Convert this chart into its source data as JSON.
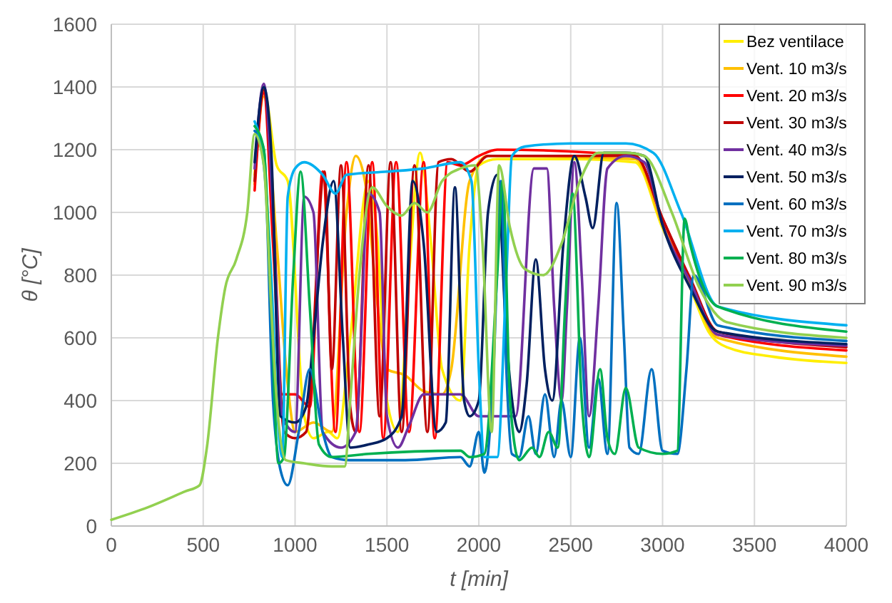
{
  "chart_data": {
    "type": "line",
    "xlabel": "t [min]",
    "ylabel": "θ [°C]",
    "xlim": [
      0,
      4000
    ],
    "ylim": [
      0,
      1600
    ],
    "xticks": [
      0,
      500,
      1000,
      1500,
      2000,
      2500,
      3000,
      3500,
      4000
    ],
    "yticks": [
      0,
      200,
      400,
      600,
      800,
      1000,
      1200,
      1400,
      1600
    ],
    "grid": true,
    "legend": "top right",
    "marker": "none",
    "line_style": "solid",
    "series": [
      {
        "name": "Bez ventilace",
        "color": "#ffee00",
        "x": [
          780,
          830,
          900,
          960,
          1050,
          1100,
          1180,
          1230,
          1300,
          1400,
          1450,
          1500,
          1560,
          1620,
          1680,
          1740,
          1800,
          1900,
          1950,
          2000,
          2100,
          2500,
          2850,
          3000,
          3150,
          3250,
          3350,
          3600,
          4000
        ],
        "values": [
          1120,
          1390,
          1150,
          1100,
          350,
          280,
          300,
          280,
          600,
          1100,
          900,
          400,
          300,
          800,
          1190,
          900,
          500,
          400,
          900,
          1150,
          1170,
          1170,
          1160,
          950,
          760,
          620,
          570,
          540,
          520
        ]
      },
      {
        "name": "Vent. 10 m3/s",
        "color": "#ffc000",
        "x": [
          780,
          830,
          900,
          960,
          1000,
          1100,
          1200,
          1280,
          1330,
          1380,
          1450,
          1500,
          1600,
          1700,
          1800,
          1850,
          1950,
          2050,
          2850,
          3000,
          3150,
          3300,
          4000
        ],
        "values": [
          1090,
          1370,
          900,
          450,
          300,
          330,
          300,
          1000,
          1180,
          1100,
          700,
          500,
          480,
          430,
          420,
          500,
          1100,
          1180,
          1170,
          960,
          770,
          600,
          540
        ]
      },
      {
        "name": "Vent. 20 m3/s",
        "color": "#ff0000",
        "x": [
          780,
          830,
          880,
          930,
          1000,
          1080,
          1150,
          1220,
          1280,
          1350,
          1420,
          1480,
          1550,
          1620,
          1700,
          1760,
          1830,
          1900,
          2000,
          2100,
          2850,
          3000,
          3150,
          3300,
          4000
        ],
        "values": [
          1070,
          1380,
          900,
          420,
          420,
          380,
          1130,
          300,
          1160,
          300,
          1160,
          280,
          1160,
          300,
          1160,
          280,
          1160,
          1150,
          1180,
          1200,
          1180,
          980,
          780,
          610,
          560
        ]
      },
      {
        "name": "Vent. 30 m3/s",
        "color": "#c00000",
        "x": [
          780,
          830,
          880,
          940,
          1000,
          1060,
          1160,
          1200,
          1250,
          1300,
          1330,
          1400,
          1460,
          1520,
          1580,
          1650,
          1720,
          1780,
          1850,
          1950,
          2050,
          2850,
          3000,
          3150,
          3300,
          4000
        ],
        "values": [
          1100,
          1390,
          1000,
          300,
          280,
          300,
          1130,
          500,
          1150,
          380,
          300,
          1150,
          350,
          1160,
          300,
          1150,
          300,
          1160,
          1170,
          1130,
          1180,
          1180,
          980,
          790,
          620,
          570
        ]
      },
      {
        "name": "Vent. 40 m3/s",
        "color": "#7030a0",
        "x": [
          780,
          830,
          880,
          930,
          1000,
          1050,
          1100,
          1150,
          1250,
          1330,
          1400,
          1460,
          1500,
          1560,
          1620,
          1700,
          1900,
          2000,
          2100,
          2200,
          2300,
          2370,
          2410,
          2450,
          2480,
          2520,
          2560,
          2600,
          2650,
          2700,
          2800,
          2900,
          3000,
          3150,
          3300,
          4000
        ],
        "values": [
          1140,
          1410,
          1000,
          350,
          300,
          1050,
          1000,
          300,
          250,
          300,
          1060,
          1000,
          350,
          250,
          320,
          420,
          420,
          350,
          350,
          350,
          1140,
          1140,
          700,
          400,
          700,
          1160,
          800,
          350,
          700,
          1140,
          1180,
          1160,
          960,
          780,
          610,
          575
        ]
      },
      {
        "name": "Vent. 50 m3/s",
        "color": "#002060",
        "x": [
          780,
          830,
          870,
          920,
          1000,
          1060,
          1100,
          1150,
          1210,
          1260,
          1300,
          1400,
          1500,
          1580,
          1640,
          1700,
          1770,
          1820,
          1870,
          1920,
          1950,
          2000,
          2050,
          2100,
          2150,
          2220,
          2260,
          2310,
          2360,
          2400,
          2460,
          2520,
          2580,
          2620,
          2680,
          2800,
          2900,
          3000,
          3150,
          3300,
          4000
        ],
        "values": [
          1160,
          1400,
          1200,
          350,
          330,
          380,
          600,
          900,
          1100,
          600,
          250,
          260,
          280,
          350,
          1100,
          900,
          300,
          330,
          1080,
          400,
          350,
          400,
          1000,
          1120,
          600,
          300,
          450,
          850,
          500,
          400,
          900,
          1180,
          1050,
          950,
          1190,
          1190,
          1180,
          960,
          760,
          620,
          580
        ]
      },
      {
        "name": "Vent. 60 m3/s",
        "color": "#0070c0",
        "x": [
          780,
          830,
          880,
          920,
          960,
          1020,
          1080,
          1150,
          1200,
          1300,
          1600,
          1900,
          1950,
          2000,
          2030,
          2080,
          2120,
          2150,
          2180,
          2220,
          2270,
          2310,
          2360,
          2410,
          2450,
          2500,
          2550,
          2600,
          2650,
          2700,
          2750,
          2790,
          2820,
          2870,
          2940,
          3000,
          3080,
          3130,
          3170,
          3300,
          4000
        ],
        "values": [
          1260,
          1200,
          400,
          180,
          130,
          300,
          500,
          300,
          220,
          210,
          210,
          220,
          190,
          300,
          170,
          500,
          1100,
          500,
          230,
          220,
          350,
          230,
          420,
          220,
          400,
          220,
          600,
          250,
          470,
          230,
          1030,
          600,
          250,
          230,
          500,
          240,
          230,
          500,
          800,
          640,
          590
        ]
      },
      {
        "name": "Vent. 70 m3/s",
        "color": "#00b0f0",
        "x": [
          780,
          830,
          870,
          900,
          930,
          960,
          1000,
          1050,
          1150,
          1220,
          1280,
          1500,
          1700,
          1900,
          1960,
          2000,
          2030,
          2100,
          2150,
          2180,
          2250,
          2500,
          2800,
          2950,
          3100,
          3300,
          4000
        ],
        "values": [
          1290,
          1150,
          800,
          400,
          220,
          1050,
          1140,
          1160,
          1120,
          1060,
          1120,
          1130,
          1140,
          1160,
          1100,
          500,
          220,
          220,
          800,
          1180,
          1210,
          1220,
          1220,
          1190,
          1000,
          700,
          640
        ]
      },
      {
        "name": "Vent. 80 m3/s",
        "color": "#00b050",
        "x": [
          780,
          830,
          870,
          910,
          940,
          990,
          1030,
          1080,
          1130,
          1200,
          1400,
          1900,
          1950,
          2030,
          2100,
          2130,
          2170,
          2220,
          2290,
          2330,
          2380,
          2430,
          2470,
          2510,
          2560,
          2600,
          2660,
          2700,
          2740,
          2800,
          2870,
          3000,
          3080,
          3120,
          3150,
          3300,
          4000
        ],
        "values": [
          1275,
          1200,
          700,
          200,
          220,
          800,
          1130,
          700,
          260,
          220,
          230,
          240,
          220,
          230,
          800,
          1100,
          400,
          210,
          250,
          220,
          300,
          250,
          700,
          1060,
          400,
          220,
          500,
          280,
          230,
          440,
          250,
          230,
          240,
          980,
          900,
          700,
          620
        ]
      },
      {
        "name": "Vent. 90 m3/s",
        "color": "#92d050",
        "x": [
          0,
          200,
          400,
          480,
          520,
          580,
          620,
          680,
          740,
          780,
          830,
          870,
          900,
          950,
          1050,
          1200,
          1270,
          1300,
          1350,
          1420,
          1500,
          1580,
          1650,
          1720,
          1800,
          1900,
          1980,
          2020,
          2070,
          2110,
          2170,
          2250,
          2350,
          2450,
          2550,
          2650,
          2800,
          2900,
          3050,
          3200,
          3350,
          4000
        ],
        "values": [
          20,
          60,
          110,
          130,
          250,
          600,
          760,
          850,
          1000,
          1250,
          1150,
          700,
          400,
          210,
          200,
          190,
          190,
          400,
          800,
          1080,
          1020,
          990,
          1030,
          1000,
          1100,
          1140,
          1150,
          900,
          300,
          1150,
          950,
          820,
          800,
          900,
          1100,
          1190,
          1190,
          1180,
          1000,
          760,
          650,
          600
        ]
      }
    ]
  }
}
